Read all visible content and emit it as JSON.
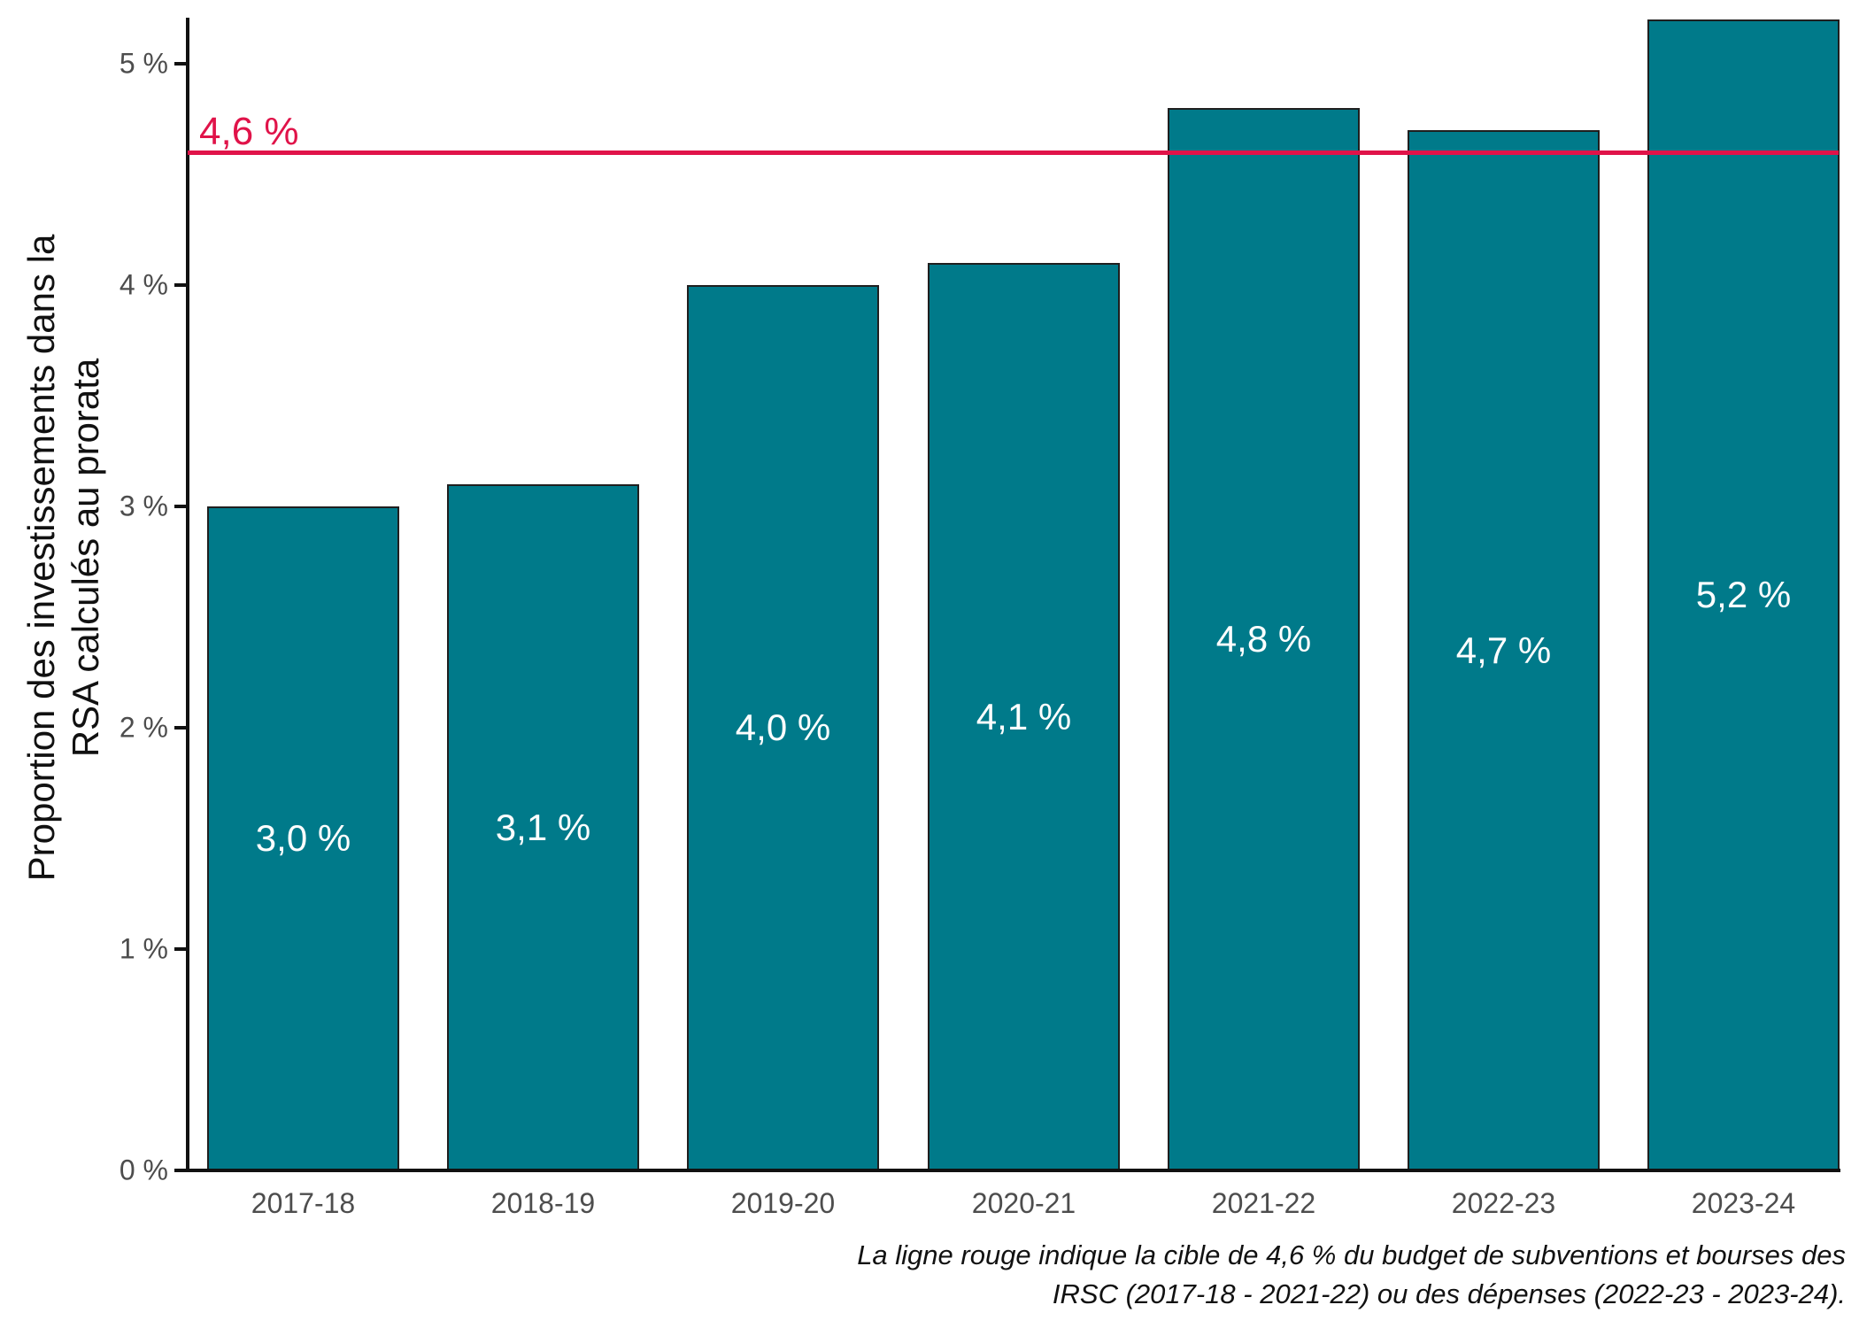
{
  "chart_data": {
    "type": "bar",
    "title": "",
    "categories": [
      "2017-18",
      "2018-19",
      "2019-20",
      "2020-21",
      "2021-22",
      "2022-23",
      "2023-24"
    ],
    "values": [
      3.0,
      3.1,
      4.0,
      4.1,
      4.8,
      4.7,
      5.2
    ],
    "bar_labels": [
      "3,0 %",
      "3,1 %",
      "4,0 %",
      "4,1 %",
      "4,8 %",
      "4,7 %",
      "5,2 %"
    ],
    "xlabel": "",
    "ylabel": "Proportion des investissements dans la RSA calculés au prorata",
    "ylabel_lines": [
      "Proportion des investissements dans la",
      "RSA calculés au prorata"
    ],
    "yticks": [
      {
        "value": 0,
        "label": "0 %"
      },
      {
        "value": 1,
        "label": "1 %"
      },
      {
        "value": 2,
        "label": "2 %"
      },
      {
        "value": 3,
        "label": "3 %"
      },
      {
        "value": 4,
        "label": "4 %"
      },
      {
        "value": 5,
        "label": "5 %"
      }
    ],
    "ylim": [
      0,
      5.2
    ],
    "grid": false,
    "legend": "none",
    "target_line": {
      "value": 4.6,
      "label": "4,6 %",
      "color": "#e01349"
    },
    "caption_lines": [
      "La ligne rouge indique la cible de 4,6 % du budget de subventions et bourses des",
      "IRSC (2017-18 - 2021-22) ou des dépenses (2022-23 - 2023-24)."
    ],
    "colors": {
      "bar_fill": "#007a8a",
      "bar_border": "#1f1f1f",
      "bar_label_text": "#ffffff",
      "axis_line": "#111111",
      "tick_label_text": "#4d4d4d",
      "target_line": "#e01349"
    }
  }
}
